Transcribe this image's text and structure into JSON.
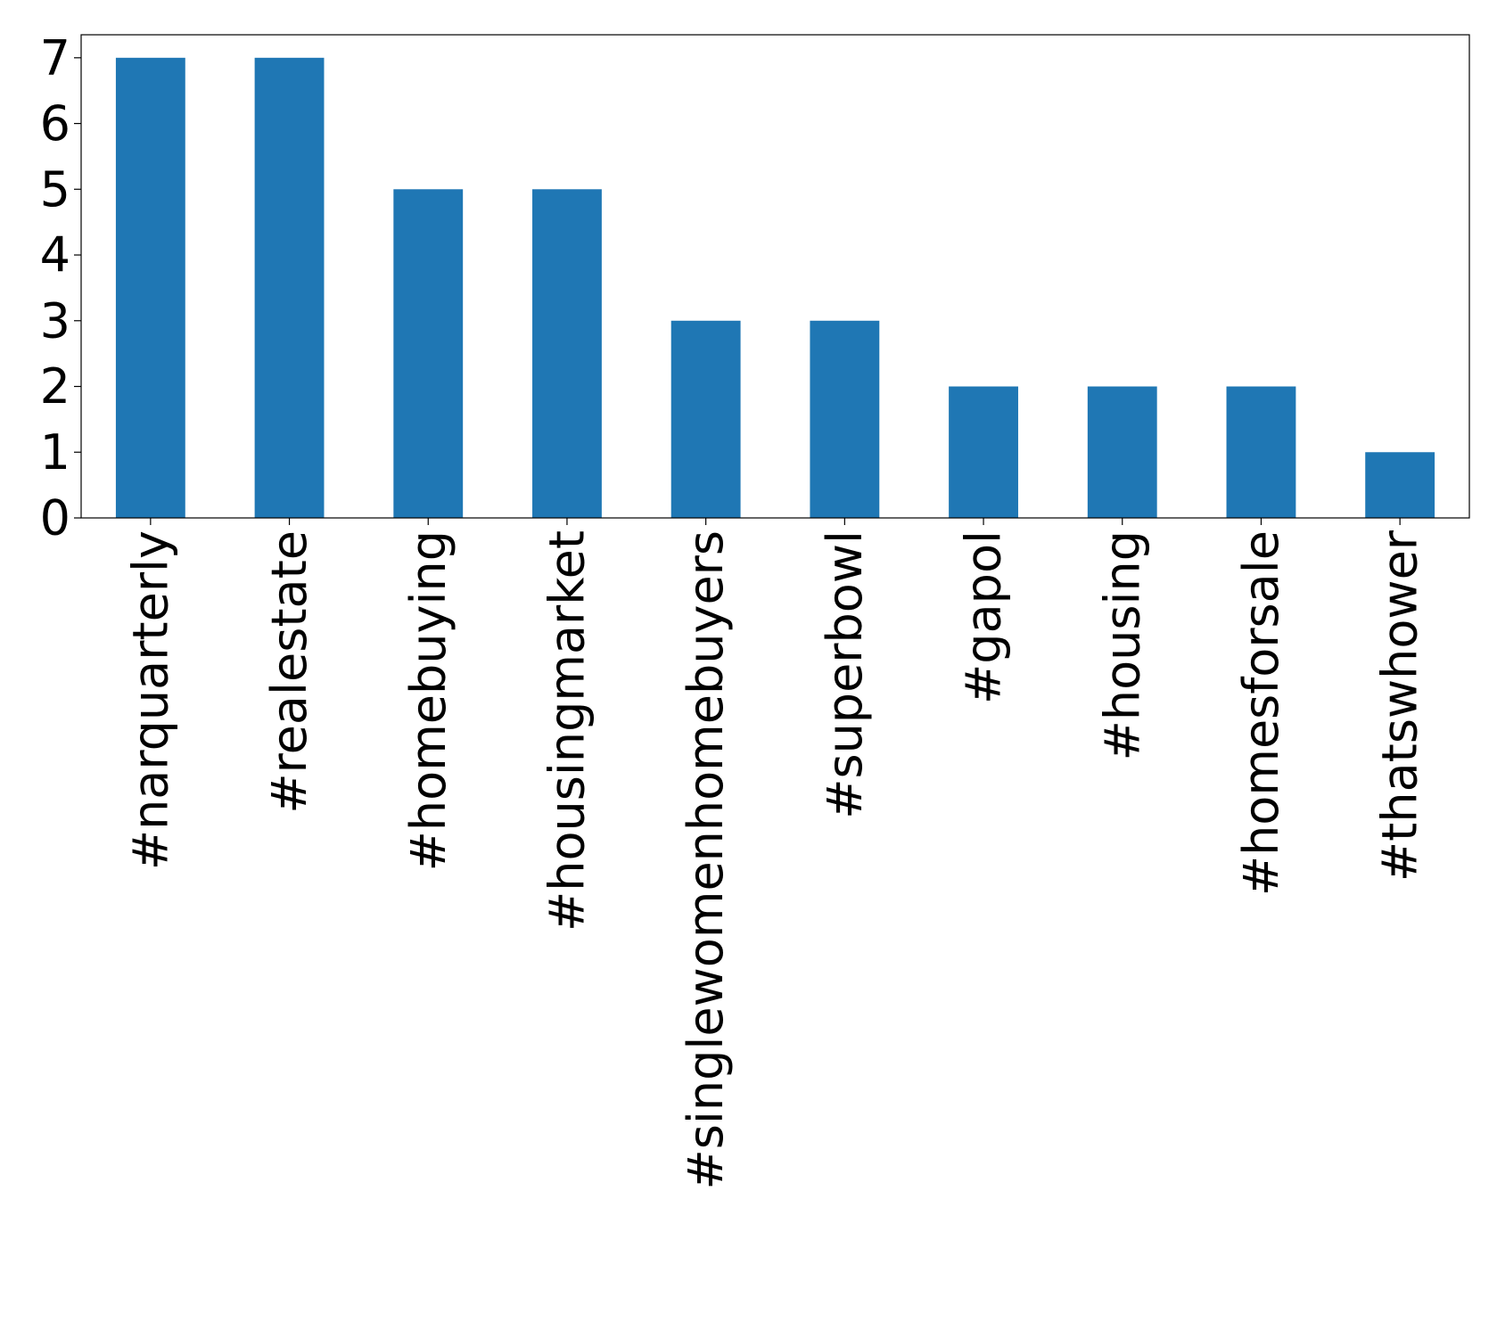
{
  "chart_data": {
    "type": "bar",
    "categories": [
      "#narquarterly",
      "#realestate",
      "#homebuying",
      "#housingmarket",
      "#singlewomenhomebuyers",
      "#superbowl",
      "#gapol",
      "#housing",
      "#homesforsale",
      "#thatswhower"
    ],
    "values": [
      7,
      7,
      5,
      5,
      3,
      3,
      2,
      2,
      2,
      1
    ],
    "color": "#1f77b4",
    "ylim": [
      0,
      7.35
    ],
    "yticks": [
      0,
      1,
      2,
      3,
      4,
      5,
      6,
      7
    ],
    "grid": false
  }
}
